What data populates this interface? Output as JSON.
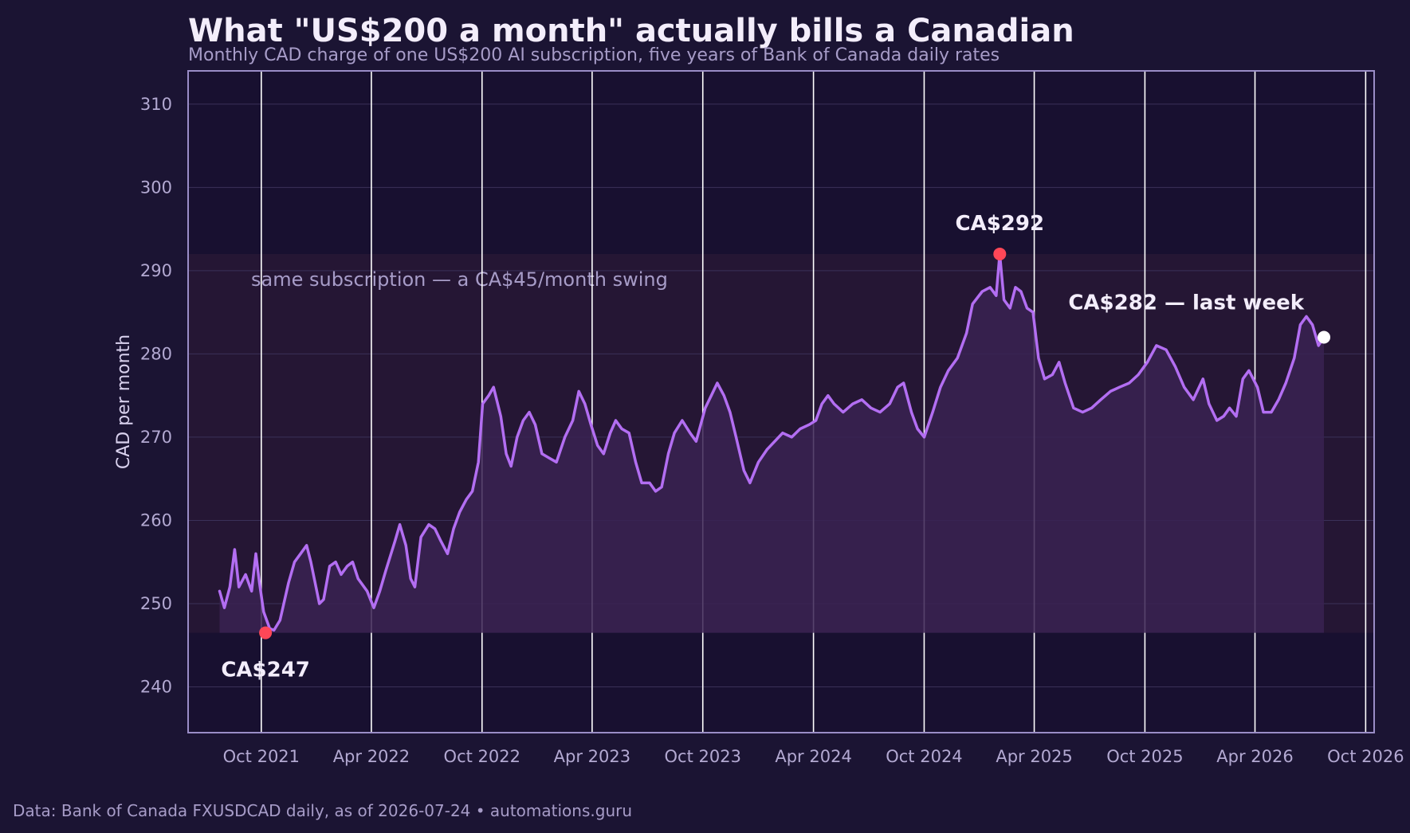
{
  "title": "What \"US$200 a month\" actually bills a Canadian",
  "subtitle": "Monthly CAD charge of one US$200 AI subscription, five years of Bank of Canada daily rates",
  "footer": "Data: Bank of Canada FXUSDCAD daily, as of 2026-07-24  •  automations.guru",
  "colors": {
    "background": "#1b1433",
    "plot_bg": "#181030",
    "band": "#251634",
    "line": "#b36ef2",
    "area": "#3a2252",
    "extreme_marker": "#ff4757",
    "last_marker": "#ffffff",
    "frame": "#9a8dc7"
  },
  "chart_data": {
    "type": "line",
    "title": "What \"US$200 a month\" actually bills a Canadian",
    "subtitle": "Monthly CAD charge of one US$200 AI subscription, five years of Bank of Canada daily rates",
    "xlabel": "",
    "ylabel": "CAD per month",
    "ylim": [
      234.5,
      314
    ],
    "xlim": [
      "2021-06-02",
      "2026-10-15"
    ],
    "yticks": [
      240,
      250,
      260,
      270,
      280,
      290,
      300,
      310
    ],
    "xticks": [
      {
        "date": "2021-10-01",
        "label": "Oct 2021"
      },
      {
        "date": "2022-04-01",
        "label": "Apr 2022"
      },
      {
        "date": "2022-10-01",
        "label": "Oct 2022"
      },
      {
        "date": "2023-04-01",
        "label": "Apr 2023"
      },
      {
        "date": "2023-10-01",
        "label": "Oct 2023"
      },
      {
        "date": "2024-04-01",
        "label": "Apr 2024"
      },
      {
        "date": "2024-10-01",
        "label": "Oct 2024"
      },
      {
        "date": "2025-04-01",
        "label": "Apr 2025"
      },
      {
        "date": "2025-10-01",
        "label": "Oct 2025"
      },
      {
        "date": "2026-04-01",
        "label": "Apr 2026"
      },
      {
        "date": "2026-10-01",
        "label": "Oct 2026"
      }
    ],
    "grid": true,
    "vertical_gridlines": "white at each x tick",
    "band": {
      "low": 246.5,
      "high": 292.0,
      "label": "same subscription — a CA$45/month swing"
    },
    "series": [
      {
        "values": [
          [
            "2021-07-24",
            251.5
          ],
          [
            "2021-08-01",
            249.5
          ],
          [
            "2021-08-10",
            252.0
          ],
          [
            "2021-08-18",
            256.5
          ],
          [
            "2021-08-25",
            252.0
          ],
          [
            "2021-09-05",
            253.5
          ],
          [
            "2021-09-15",
            251.5
          ],
          [
            "2021-09-22",
            256.0
          ],
          [
            "2021-09-28",
            252.5
          ],
          [
            "2021-10-05",
            249.0
          ],
          [
            "2021-10-15",
            247.0
          ],
          [
            "2021-10-22",
            246.8
          ],
          [
            "2021-11-01",
            248.0
          ],
          [
            "2021-11-15",
            252.5
          ],
          [
            "2021-11-25",
            255.0
          ],
          [
            "2021-12-05",
            256.0
          ],
          [
            "2021-12-15",
            257.0
          ],
          [
            "2021-12-22",
            255.0
          ],
          [
            "2022-01-05",
            250.0
          ],
          [
            "2022-01-12",
            250.5
          ],
          [
            "2022-01-22",
            254.5
          ],
          [
            "2022-02-01",
            255.0
          ],
          [
            "2022-02-10",
            253.5
          ],
          [
            "2022-02-20",
            254.5
          ],
          [
            "2022-03-01",
            255.0
          ],
          [
            "2022-03-10",
            253.0
          ],
          [
            "2022-03-25",
            251.5
          ],
          [
            "2022-04-05",
            249.5
          ],
          [
            "2022-04-15",
            251.5
          ],
          [
            "2022-04-25",
            254.0
          ],
          [
            "2022-05-10",
            257.5
          ],
          [
            "2022-05-18",
            259.5
          ],
          [
            "2022-05-28",
            257.0
          ],
          [
            "2022-06-05",
            253.0
          ],
          [
            "2022-06-12",
            252.0
          ],
          [
            "2022-06-22",
            258.0
          ],
          [
            "2022-07-05",
            259.5
          ],
          [
            "2022-07-15",
            259.0
          ],
          [
            "2022-07-25",
            257.5
          ],
          [
            "2022-08-05",
            256.0
          ],
          [
            "2022-08-15",
            259.0
          ],
          [
            "2022-08-25",
            261.0
          ],
          [
            "2022-09-05",
            262.5
          ],
          [
            "2022-09-15",
            263.5
          ],
          [
            "2022-09-25",
            267.0
          ],
          [
            "2022-10-02",
            274.0
          ],
          [
            "2022-10-12",
            275.0
          ],
          [
            "2022-10-20",
            276.0
          ],
          [
            "2022-11-01",
            272.5
          ],
          [
            "2022-11-10",
            268.0
          ],
          [
            "2022-11-18",
            266.5
          ],
          [
            "2022-11-28",
            270.0
          ],
          [
            "2022-12-08",
            272.0
          ],
          [
            "2022-12-18",
            273.0
          ],
          [
            "2022-12-28",
            271.5
          ],
          [
            "2023-01-08",
            268.0
          ],
          [
            "2023-01-20",
            267.5
          ],
          [
            "2023-02-01",
            267.0
          ],
          [
            "2023-02-15",
            270.0
          ],
          [
            "2023-02-28",
            272.0
          ],
          [
            "2023-03-10",
            275.5
          ],
          [
            "2023-03-20",
            274.0
          ],
          [
            "2023-03-30",
            271.5
          ],
          [
            "2023-04-10",
            269.0
          ],
          [
            "2023-04-20",
            268.0
          ],
          [
            "2023-05-01",
            270.5
          ],
          [
            "2023-05-10",
            272.0
          ],
          [
            "2023-05-20",
            271.0
          ],
          [
            "2023-06-01",
            270.5
          ],
          [
            "2023-06-12",
            267.0
          ],
          [
            "2023-06-22",
            264.5
          ],
          [
            "2023-07-05",
            264.5
          ],
          [
            "2023-07-15",
            263.5
          ],
          [
            "2023-07-25",
            264.0
          ],
          [
            "2023-08-05",
            268.0
          ],
          [
            "2023-08-15",
            270.5
          ],
          [
            "2023-08-28",
            272.0
          ],
          [
            "2023-09-10",
            270.5
          ],
          [
            "2023-09-20",
            269.5
          ],
          [
            "2023-10-05",
            273.5
          ],
          [
            "2023-10-15",
            275.0
          ],
          [
            "2023-10-25",
            276.5
          ],
          [
            "2023-11-05",
            275.0
          ],
          [
            "2023-11-15",
            273.0
          ],
          [
            "2023-11-25",
            270.0
          ],
          [
            "2023-12-08",
            266.0
          ],
          [
            "2023-12-18",
            264.5
          ],
          [
            "2024-01-01",
            267.0
          ],
          [
            "2024-01-15",
            268.5
          ],
          [
            "2024-01-28",
            269.5
          ],
          [
            "2024-02-10",
            270.5
          ],
          [
            "2024-02-25",
            270.0
          ],
          [
            "2024-03-10",
            271.0
          ],
          [
            "2024-03-25",
            271.5
          ],
          [
            "2024-04-05",
            272.0
          ],
          [
            "2024-04-15",
            274.0
          ],
          [
            "2024-04-25",
            275.0
          ],
          [
            "2024-05-05",
            274.0
          ],
          [
            "2024-05-20",
            273.0
          ],
          [
            "2024-06-05",
            274.0
          ],
          [
            "2024-06-20",
            274.5
          ],
          [
            "2024-07-05",
            273.5
          ],
          [
            "2024-07-20",
            273.0
          ],
          [
            "2024-08-05",
            274.0
          ],
          [
            "2024-08-18",
            276.0
          ],
          [
            "2024-08-28",
            276.5
          ],
          [
            "2024-09-10",
            273.0
          ],
          [
            "2024-09-20",
            271.0
          ],
          [
            "2024-10-01",
            270.0
          ],
          [
            "2024-10-15",
            273.0
          ],
          [
            "2024-10-28",
            276.0
          ],
          [
            "2024-11-10",
            278.0
          ],
          [
            "2024-11-25",
            279.5
          ],
          [
            "2024-12-10",
            282.5
          ],
          [
            "2024-12-20",
            286.0
          ],
          [
            "2025-01-05",
            287.5
          ],
          [
            "2025-01-18",
            288.0
          ],
          [
            "2025-01-28",
            287.0
          ],
          [
            "2025-02-03",
            292.0
          ],
          [
            "2025-02-10",
            286.5
          ],
          [
            "2025-02-20",
            285.5
          ],
          [
            "2025-03-01",
            288.0
          ],
          [
            "2025-03-10",
            287.5
          ],
          [
            "2025-03-20",
            285.5
          ],
          [
            "2025-03-30",
            285.0
          ],
          [
            "2025-04-08",
            279.5
          ],
          [
            "2025-04-18",
            277.0
          ],
          [
            "2025-05-01",
            277.5
          ],
          [
            "2025-05-12",
            279.0
          ],
          [
            "2025-05-22",
            276.5
          ],
          [
            "2025-06-05",
            273.5
          ],
          [
            "2025-06-20",
            273.0
          ],
          [
            "2025-07-05",
            273.5
          ],
          [
            "2025-07-20",
            274.5
          ],
          [
            "2025-08-05",
            275.5
          ],
          [
            "2025-08-20",
            276.0
          ],
          [
            "2025-09-05",
            276.5
          ],
          [
            "2025-09-20",
            277.5
          ],
          [
            "2025-10-05",
            279.0
          ],
          [
            "2025-10-20",
            281.0
          ],
          [
            "2025-11-05",
            280.5
          ],
          [
            "2025-11-20",
            278.5
          ],
          [
            "2025-12-05",
            276.0
          ],
          [
            "2025-12-20",
            274.5
          ],
          [
            "2026-01-05",
            277.0
          ],
          [
            "2026-01-15",
            274.0
          ],
          [
            "2026-01-28",
            272.0
          ],
          [
            "2026-02-08",
            272.5
          ],
          [
            "2026-02-18",
            273.5
          ],
          [
            "2026-03-01",
            272.5
          ],
          [
            "2026-03-12",
            277.0
          ],
          [
            "2026-03-22",
            278.0
          ],
          [
            "2026-04-05",
            276.0
          ],
          [
            "2026-04-15",
            273.0
          ],
          [
            "2026-04-28",
            273.0
          ],
          [
            "2026-05-10",
            274.5
          ],
          [
            "2026-05-22",
            276.5
          ],
          [
            "2026-06-05",
            279.5
          ],
          [
            "2026-06-15",
            283.5
          ],
          [
            "2026-06-25",
            284.5
          ],
          [
            "2026-07-05",
            283.5
          ],
          [
            "2026-07-15",
            281.0
          ],
          [
            "2026-07-24",
            282.0
          ]
        ]
      }
    ],
    "annotations": [
      {
        "label": "CA$247",
        "date": "2021-10-08",
        "value": 246.5,
        "position": "below",
        "marker": "extreme"
      },
      {
        "label": "CA$292",
        "date": "2025-02-03",
        "value": 292.0,
        "position": "above",
        "marker": "extreme"
      },
      {
        "label": "CA$282 — last week",
        "date": "2026-07-24",
        "value": 282.0,
        "position": "above-left",
        "marker": "last"
      }
    ]
  }
}
